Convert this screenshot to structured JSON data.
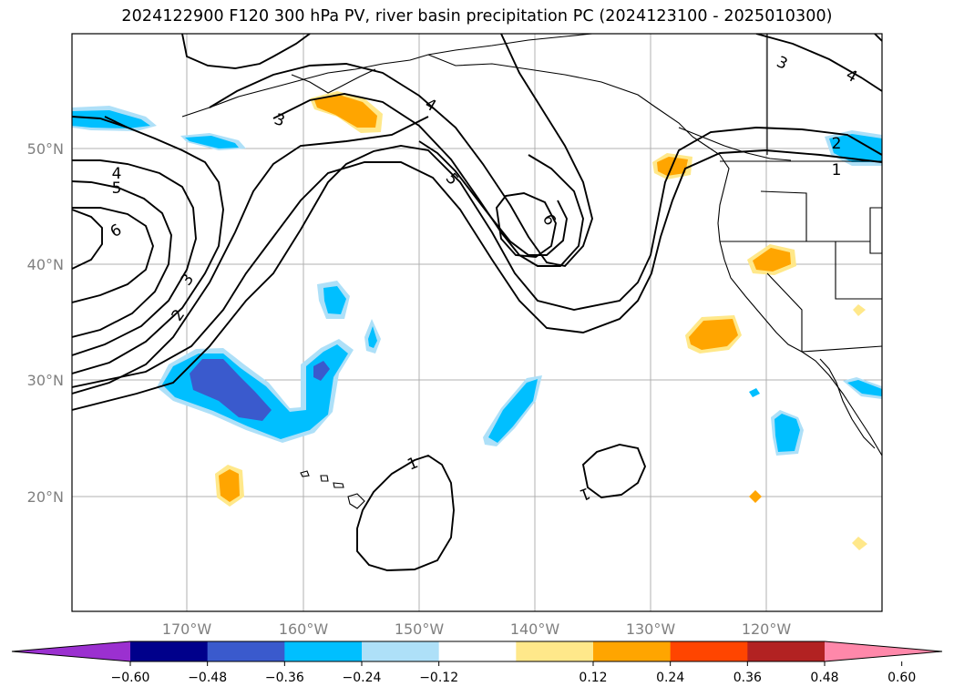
{
  "title": "2024122900 F120 300 hPa PV, river basin precipitation PC (2024123100 - 2025010300)",
  "lat_labels": [
    "50°N",
    "40°N",
    "30°N",
    "20°N"
  ],
  "lon_labels": [
    "170°W",
    "160°W",
    "150°W",
    "140°W",
    "130°W",
    "120°W"
  ],
  "colorbar": {
    "ticks": [
      "−0.60",
      "−0.48",
      "−0.36",
      "−0.24",
      "−0.12",
      "0.12",
      "0.24",
      "0.36",
      "0.48",
      "0.60"
    ],
    "colors": [
      "#9b30d0",
      "#00008b",
      "#3a5acd",
      "#00bfff",
      "#aee0f8",
      "#ffffff",
      "#ffe88a",
      "#ffa500",
      "#ff4500",
      "#b22222",
      "#ff88aa"
    ]
  },
  "contour_labels": [
    "1",
    "1",
    "2",
    "2",
    "3",
    "3",
    "4",
    "4",
    "4",
    "5",
    "5",
    "6",
    "6",
    "1",
    "3"
  ]
}
